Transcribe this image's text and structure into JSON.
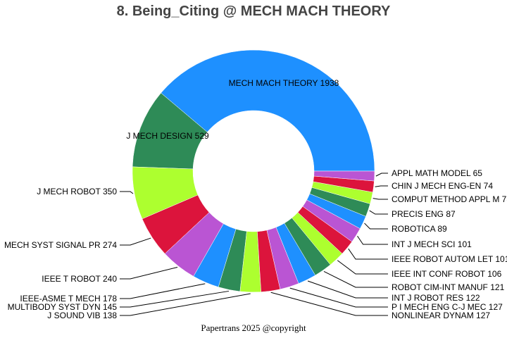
{
  "chart_data": {
    "type": "pie",
    "variant": "donut",
    "title": "8. Being_Citing @ MECH MACH THEORY",
    "footer": "Papertrans 2025 @copyright",
    "direction": "counterclockwise from 3 o'clock",
    "slices": [
      {
        "label": "MECH MACH THEORY",
        "value": 1938,
        "color": "#1E90FF"
      },
      {
        "label": "J MECH DESIGN",
        "value": 529,
        "color": "#2E8B57"
      },
      {
        "label": "J MECH ROBOT",
        "value": 350,
        "color": "#ADFF2F"
      },
      {
        "label": "MECH SYST SIGNAL PR",
        "value": 274,
        "color": "#DC143C"
      },
      {
        "label": "IEEE T ROBOT",
        "value": 240,
        "color": "#BA55D3"
      },
      {
        "label": "IEEE-ASME T MECH",
        "value": 178,
        "color": "#1E90FF"
      },
      {
        "label": "MULTIBODY SYST DYN",
        "value": 145,
        "color": "#2E8B57"
      },
      {
        "label": "J SOUND VIB",
        "value": 138,
        "color": "#ADFF2F"
      },
      {
        "label": "NONLINEAR DYNAM",
        "value": 127,
        "color": "#DC143C"
      },
      {
        "label": "P I MECH ENG C-J MEC",
        "value": 127,
        "color": "#BA55D3"
      },
      {
        "label": "INT J ROBOT RES",
        "value": 122,
        "color": "#1E90FF"
      },
      {
        "label": "ROBOT CIM-INT MANUF",
        "value": 121,
        "color": "#2E8B57"
      },
      {
        "label": "IEEE INT CONF ROBOT",
        "value": 106,
        "color": "#ADFF2F"
      },
      {
        "label": "IEEE ROBOT AUTOM LET",
        "value": 101,
        "color": "#DC143C"
      },
      {
        "label": "INT J MECH SCI",
        "value": 101,
        "color": "#BA55D3"
      },
      {
        "label": "ROBOTICA",
        "value": 89,
        "color": "#1E90FF"
      },
      {
        "label": "PRECIS ENG",
        "value": 87,
        "color": "#2E8B57"
      },
      {
        "label": "COMPUT METHOD APPL M",
        "value": 78,
        "color": "#ADFF2F"
      },
      {
        "label": "CHIN J MECH ENG-EN",
        "value": 74,
        "color": "#DC143C"
      },
      {
        "label": "APPL MATH MODEL",
        "value": 65,
        "color": "#BA55D3"
      }
    ]
  }
}
